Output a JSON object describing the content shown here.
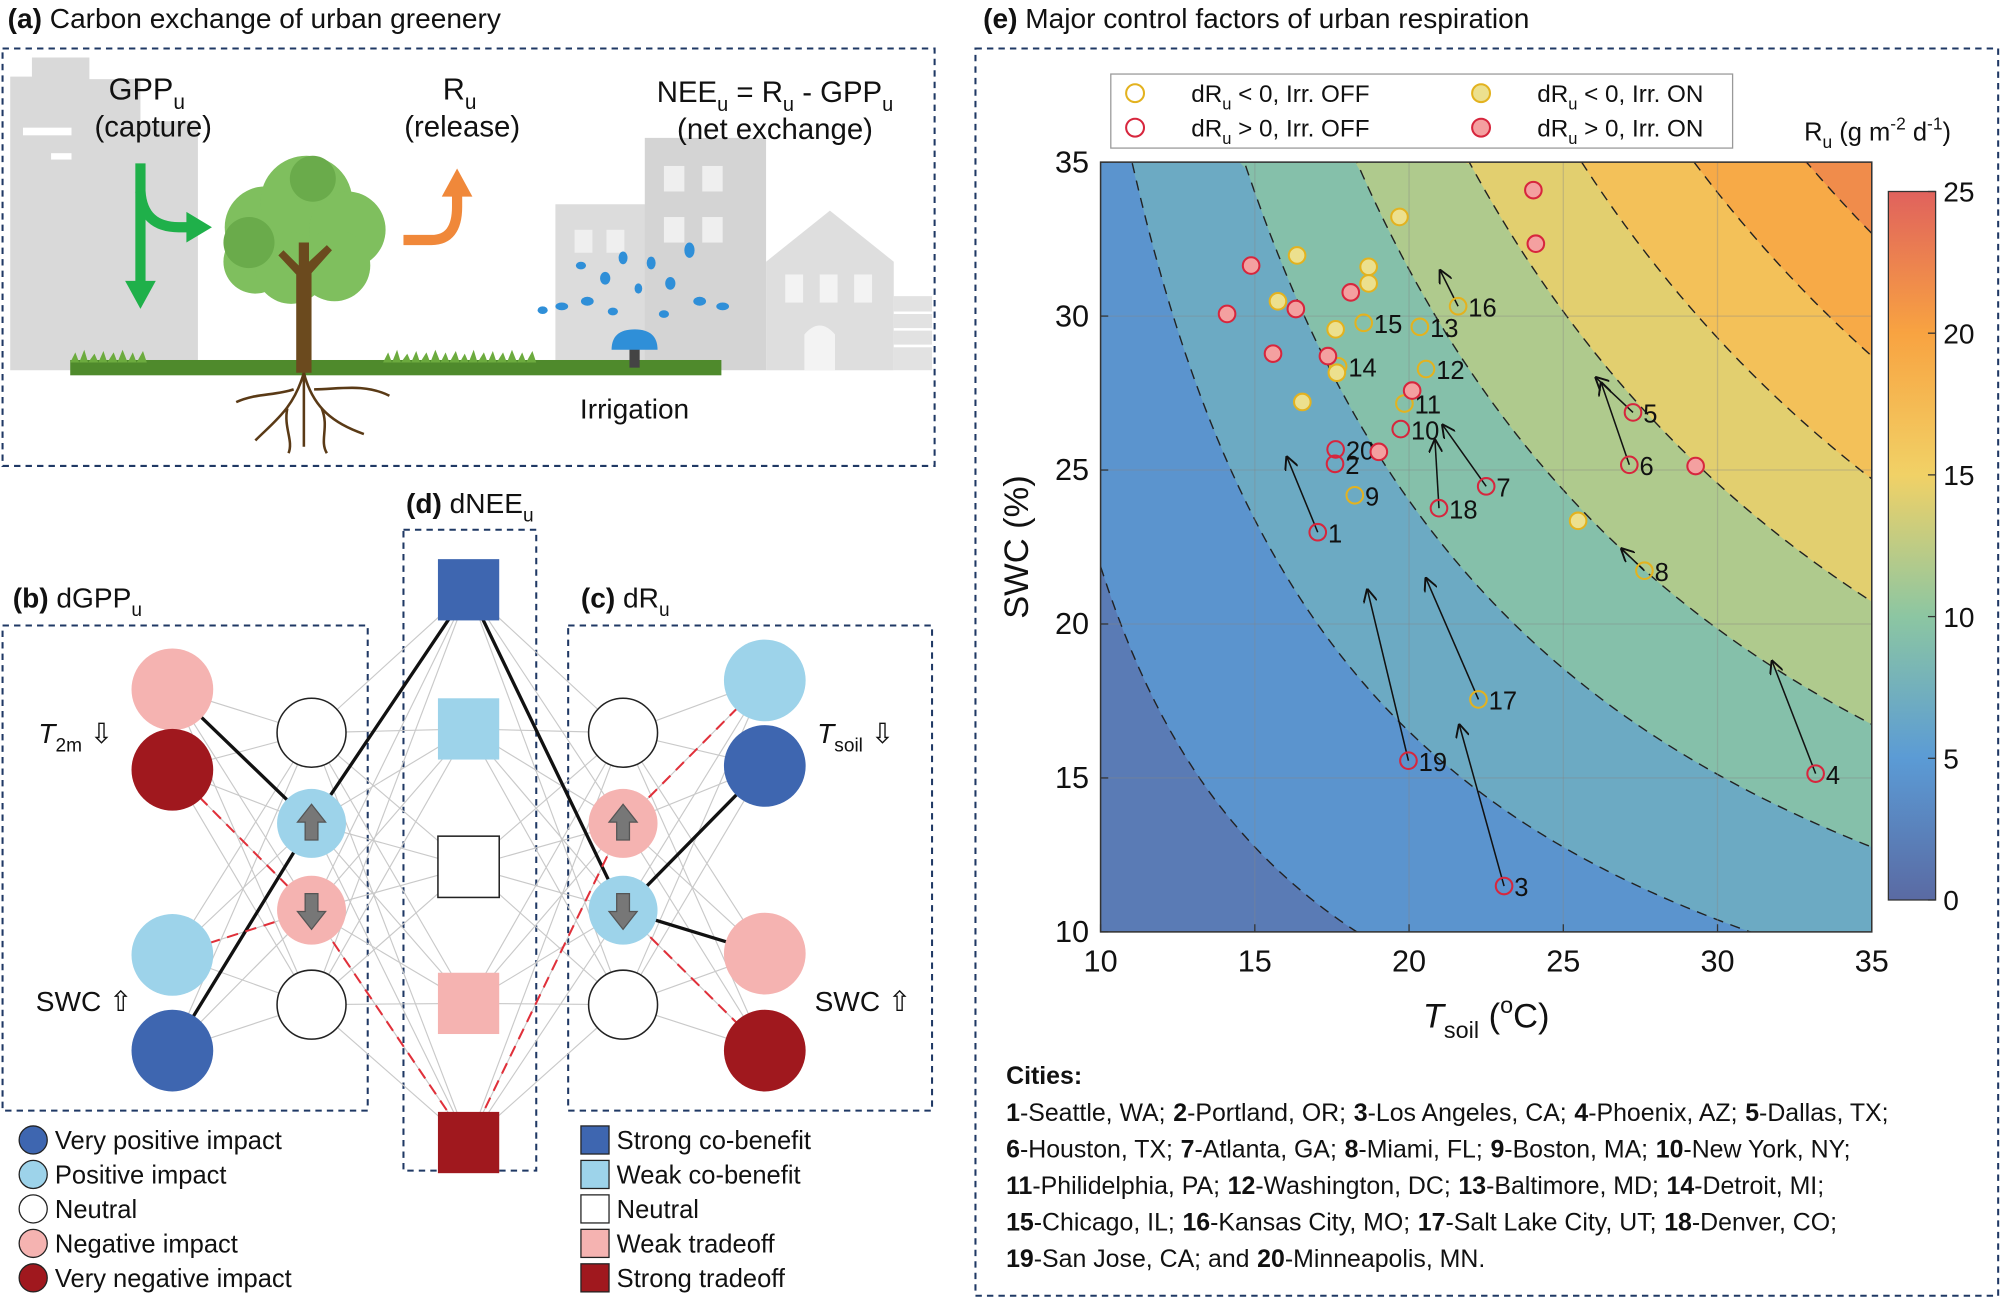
{
  "panel_a": {
    "title": [
      {
        "bold": "(a)"
      },
      {
        "text": " Carbon exchange of urban greenery"
      }
    ],
    "gpp": [
      {
        "text": "GPP"
      },
      {
        "sub": "u"
      }
    ],
    "gpp_note": "(capture)",
    "r": [
      {
        "text": "R"
      },
      {
        "sub": "u"
      }
    ],
    "r_note": "(release)",
    "nee": [
      {
        "text": "NEE"
      },
      {
        "sub": "u"
      },
      {
        "text": " = R"
      },
      {
        "sub": "u"
      },
      {
        "text": " - GPP"
      },
      {
        "sub": "u"
      }
    ],
    "nee_note": "(net exchange)",
    "irrigation": "Irrigation"
  },
  "panel_b": {
    "title": [
      {
        "bold": "(b)"
      },
      {
        "text": " dGPP"
      },
      {
        "sub": "u"
      }
    ],
    "driver_top": [
      {
        "italic": "T"
      },
      {
        "sub": "2m"
      },
      {
        "text": " ⇩"
      }
    ],
    "driver_bottom": "SWC ⇧"
  },
  "panel_c": {
    "title": [
      {
        "bold": "(c)"
      },
      {
        "text": " dR"
      },
      {
        "sub": "u"
      }
    ],
    "driver_top": [
      {
        "italic": "T"
      },
      {
        "sub": "soil"
      },
      {
        "text": " ⇩"
      }
    ],
    "driver_bottom": "SWC ⇧"
  },
  "panel_d": {
    "title": [
      {
        "bold": "(d)"
      },
      {
        "text": " dNEE"
      },
      {
        "sub": "u"
      }
    ]
  },
  "legend_impact": [
    {
      "label": "Very positive impact",
      "color": "#3e66b0"
    },
    {
      "label": "Positive impact",
      "color": "#9dd3ea"
    },
    {
      "label": "Neutral",
      "color": "#ffffff"
    },
    {
      "label": "Negative impact",
      "color": "#f5b3b1"
    },
    {
      "label": "Very negative impact",
      "color": "#a0181e"
    }
  ],
  "legend_benefit": [
    {
      "label": "Strong co-benefit",
      "color": "#3e66b0"
    },
    {
      "label": "Weak co-benefit",
      "color": "#9dd3ea"
    },
    {
      "label": "Neutral",
      "color": "#ffffff"
    },
    {
      "label": "Weak tradeoff",
      "color": "#f5b3b1"
    },
    {
      "label": "Strong tradeoff",
      "color": "#a0181e"
    }
  ],
  "chart_data": {
    "type": "scatter",
    "title": [
      {
        "bold": "(e)"
      },
      {
        "text": " Major control factors of urban respiration"
      }
    ],
    "x_label": [
      {
        "italic": "T"
      },
      {
        "sub": "soil"
      },
      {
        "text": " ("
      },
      {
        "sup": "o"
      },
      {
        "text": "C)"
      }
    ],
    "y_label": "SWC (%)",
    "xlim": [
      10,
      35
    ],
    "ylim": [
      10,
      35
    ],
    "xticks": [
      10,
      15,
      20,
      25,
      30,
      35
    ],
    "yticks": [
      10,
      15,
      20,
      25,
      30,
      35
    ],
    "grid": true,
    "legend_position": "top",
    "series": [
      {
        "name": [
          {
            "text": "dR"
          },
          {
            "sub": "u"
          },
          {
            "text": " < 0, Irr. OFF"
          }
        ],
        "color": "#e3b21f",
        "x": [
          27.63,
          18.24,
          19.85,
          20.55,
          20.35,
          17.7,
          18.53,
          21.59,
          22.25
        ],
        "y": [
          21.73,
          24.18,
          27.16,
          28.28,
          29.65,
          28.37,
          29.78,
          30.32,
          17.55
        ],
        "labels": [
          "8",
          "9",
          "11",
          "12",
          "13",
          "14",
          "15",
          "16",
          "17"
        ]
      },
      {
        "name": [
          {
            "text": "dR"
          },
          {
            "sub": "u"
          },
          {
            "text": " > 0, Irr. OFF"
          }
        ],
        "color": "#d7263d",
        "x": [
          17.04,
          17.6,
          23.08,
          33.18,
          27.26,
          27.14,
          22.5,
          19.73,
          20.97,
          19.98,
          17.62
        ],
        "y": [
          22.98,
          25.2,
          11.49,
          15.14,
          26.87,
          25.17,
          24.47,
          26.33,
          23.76,
          15.56,
          25.67
        ],
        "labels": [
          "1",
          "2",
          "3",
          "4",
          "5",
          "6",
          "7",
          "10",
          "18",
          "19",
          "20"
        ]
      },
      {
        "name": [
          {
            "text": "dR"
          },
          {
            "sub": "u"
          },
          {
            "text": " < 0, Irr. ON"
          }
        ],
        "color": "#e3b21f",
        "fill": "#ece08e",
        "x": [
          16.37,
          15.75,
          17.62,
          17.66,
          18.69,
          18.69,
          19.69,
          25.48,
          16.54
        ],
        "y": [
          31.97,
          30.48,
          29.57,
          28.16,
          31.6,
          31.06,
          33.22,
          23.35,
          27.21
        ]
      },
      {
        "name": [
          {
            "text": "dR"
          },
          {
            "sub": "u"
          },
          {
            "text": " > 0, Irr. ON"
          }
        ],
        "color": "#d7263d",
        "fill": "#f4a0a0",
        "x": [
          14.1,
          14.88,
          15.59,
          16.33,
          17.37,
          18.11,
          19.02,
          20.1,
          24.03,
          24.11,
          29.29
        ],
        "y": [
          30.07,
          31.64,
          28.78,
          30.23,
          28.7,
          30.77,
          25.59,
          27.58,
          34.09,
          32.35,
          25.13
        ]
      }
    ],
    "arrows": [
      {
        "from": "1",
        "x": 16.04,
        "y": 25.42
      },
      {
        "from": "3",
        "x": 21.63,
        "y": 16.72
      },
      {
        "from": "4",
        "x": 31.77,
        "y": 18.79
      },
      {
        "from": "5",
        "x": 26.06,
        "y": 28.0
      },
      {
        "from": "6",
        "x": 26.23,
        "y": 27.83
      },
      {
        "from": "7",
        "x": 21.09,
        "y": 26.46
      },
      {
        "from": "8",
        "x": 26.89,
        "y": 22.44
      },
      {
        "from": "16",
        "x": 21.01,
        "y": 31.48
      },
      {
        "from": "17",
        "x": 20.55,
        "y": 21.48
      },
      {
        "from": "18",
        "x": 20.84,
        "y": 25.97
      },
      {
        "from": "19",
        "x": 18.65,
        "y": 21.11
      }
    ],
    "colorbar": {
      "label": [
        {
          "text": "R"
        },
        {
          "sub": "u"
        },
        {
          "text": " (g m"
        },
        {
          "sup": "-2"
        },
        {
          "text": " d"
        },
        {
          "sup": "-1"
        },
        {
          "text": ")"
        }
      ],
      "lim": [
        0,
        25
      ],
      "ticks": [
        0,
        5,
        10,
        15,
        20,
        25
      ],
      "colormap": [
        "#5a6aa3",
        "#5b9bd5",
        "#8cc6a2",
        "#f1d166",
        "#f8a341",
        "#e0625d"
      ]
    }
  },
  "cities": {
    "heading": "Cities:",
    "lines": [
      [
        {
          "num": "1",
          "text": "-Seattle, WA;"
        },
        {
          "num": "2",
          "text": "-Portland, OR;"
        },
        {
          "num": "3",
          "text": "-Los Angeles, CA;"
        },
        {
          "num": "4",
          "text": "-Phoenix, AZ;"
        },
        {
          "num": "5",
          "text": "-Dallas, TX;"
        }
      ],
      [
        {
          "num": "6",
          "text": "-Houston, TX;"
        },
        {
          "num": "7",
          "text": "-Atlanta, GA;"
        },
        {
          "num": "8",
          "text": "-Miami, FL;"
        },
        {
          "num": "9",
          "text": "-Boston, MA;"
        },
        {
          "num": "10",
          "text": "-New York, NY;"
        }
      ],
      [
        {
          "num": "11",
          "text": "-Philidelphia, PA;"
        },
        {
          "num": "12",
          "text": "-Washington, DC;"
        },
        {
          "num": "13",
          "text": "-Baltimore, MD;"
        },
        {
          "num": "14",
          "text": "-Detroit, MI;"
        }
      ],
      [
        {
          "num": "15",
          "text": "-Chicago, IL;"
        },
        {
          "num": "16",
          "text": "-Kansas City, MO;"
        },
        {
          "num": "17",
          "text": "-Salt Lake City, UT;"
        },
        {
          "num": "18",
          "text": "-Denver, CO;"
        }
      ],
      [
        {
          "num": "19",
          "text": "-San Jose, CA; and"
        },
        {
          "num": "20",
          "text": "-Minneapolis, MN."
        }
      ]
    ]
  }
}
